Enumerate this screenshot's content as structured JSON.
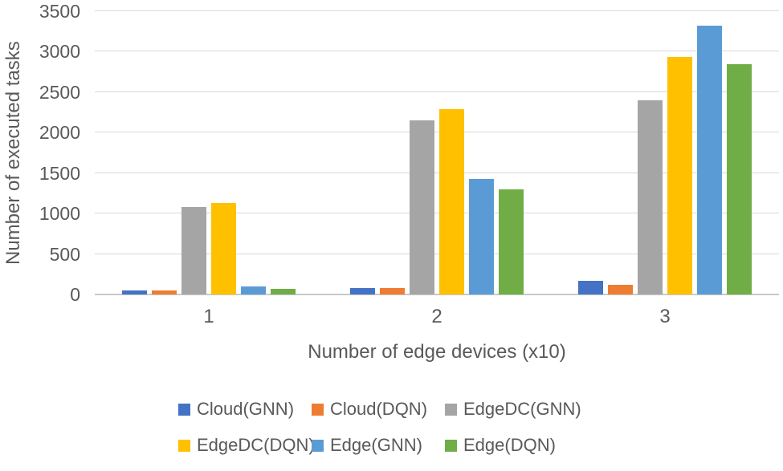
{
  "chart_data": {
    "type": "bar",
    "title": "",
    "xlabel": "Number of edge devices (x10)",
    "ylabel": "Number of executed tasks",
    "categories": [
      "1",
      "2",
      "3"
    ],
    "series": [
      {
        "name": "Cloud(GNN)",
        "color": "#4472C4",
        "values": [
          50,
          80,
          170
        ]
      },
      {
        "name": "Cloud(DQN)",
        "color": "#ED7D31",
        "values": [
          45,
          75,
          120
        ]
      },
      {
        "name": "EdgeDC(GNN)",
        "color": "#A5A5A5",
        "values": [
          1080,
          2150,
          2400
        ]
      },
      {
        "name": "EdgeDC(DQN)",
        "color": "#FFC000",
        "values": [
          1130,
          2290,
          2930
        ]
      },
      {
        "name": "Edge(GNN)",
        "color": "#5B9BD5",
        "values": [
          100,
          1430,
          3320
        ]
      },
      {
        "name": "Edge(DQN)",
        "color": "#70AD47",
        "values": [
          65,
          1300,
          2850
        ]
      }
    ],
    "ylim": [
      0,
      3500
    ],
    "ytick_step": 500,
    "yticks": [
      "0",
      "500",
      "1000",
      "1500",
      "2000",
      "2500",
      "3000",
      "3500"
    ],
    "grid": true,
    "legend_position": "bottom",
    "legend_rows": 2
  },
  "colors": {
    "text": "#595959",
    "gridline": "#D9D9D9",
    "axisline": "#C9C9C9",
    "background": "#FFFFFF"
  }
}
